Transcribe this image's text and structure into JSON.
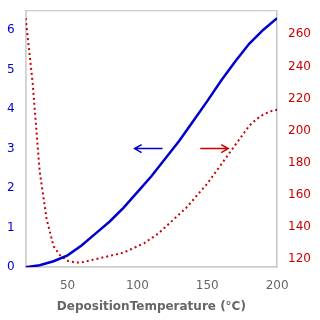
{
  "chart_data": {
    "type": "line",
    "title": "",
    "xlabel": "DepositionTemperature (°C)",
    "xlim": [
      20,
      200
    ],
    "xticks": [
      50,
      100,
      150,
      200
    ],
    "ylim": [
      0,
      6.5
    ],
    "yticks": [
      0,
      1,
      2,
      3,
      4,
      5,
      6
    ],
    "y2lim": [
      115,
      275
    ],
    "y2ticks": [
      120,
      140,
      160,
      180,
      200,
      220,
      240,
      260
    ],
    "grid": false,
    "series": [
      {
        "color": "#0000cc",
        "line_style": "solid",
        "axis": "y",
        "x": [
          20,
          30,
          40,
          50,
          60,
          70,
          80,
          90,
          100,
          110,
          120,
          130,
          140,
          150,
          160,
          170,
          180,
          190,
          200
        ],
        "values": [
          0.0,
          0.05,
          0.15,
          0.3,
          0.55,
          0.85,
          1.15,
          1.5,
          1.9,
          2.3,
          2.75,
          3.2,
          3.7,
          4.2,
          4.72,
          5.2,
          5.65,
          6.0,
          6.3
        ]
      },
      {
        "color": "#cc0000",
        "line_style": "dotted",
        "axis": "y2",
        "x": [
          20,
          25,
          30,
          35,
          40,
          45,
          50,
          55,
          60,
          65,
          70,
          75,
          80,
          85,
          90,
          95,
          100,
          105,
          110,
          115,
          120,
          125,
          130,
          135,
          140,
          145,
          150,
          155,
          160,
          165,
          170,
          175,
          180,
          185,
          190,
          195,
          200
        ],
        "values": [
          270,
          230,
          175,
          145,
          128,
          122,
          119,
          118,
          118,
          119,
          120,
          121,
          122,
          123,
          124,
          126,
          128,
          130,
          133,
          136,
          140,
          144,
          148,
          152,
          157,
          162,
          167,
          173,
          179,
          185,
          191,
          197,
          203,
          207,
          210,
          212,
          213
        ]
      }
    ],
    "arrows": [
      {
        "x_start": 118,
        "x_end": 98,
        "y": 3.0,
        "color": "#0000cc"
      },
      {
        "x_start": 145,
        "x_end": 165,
        "y": 3.0,
        "color": "#cc0000"
      }
    ]
  }
}
